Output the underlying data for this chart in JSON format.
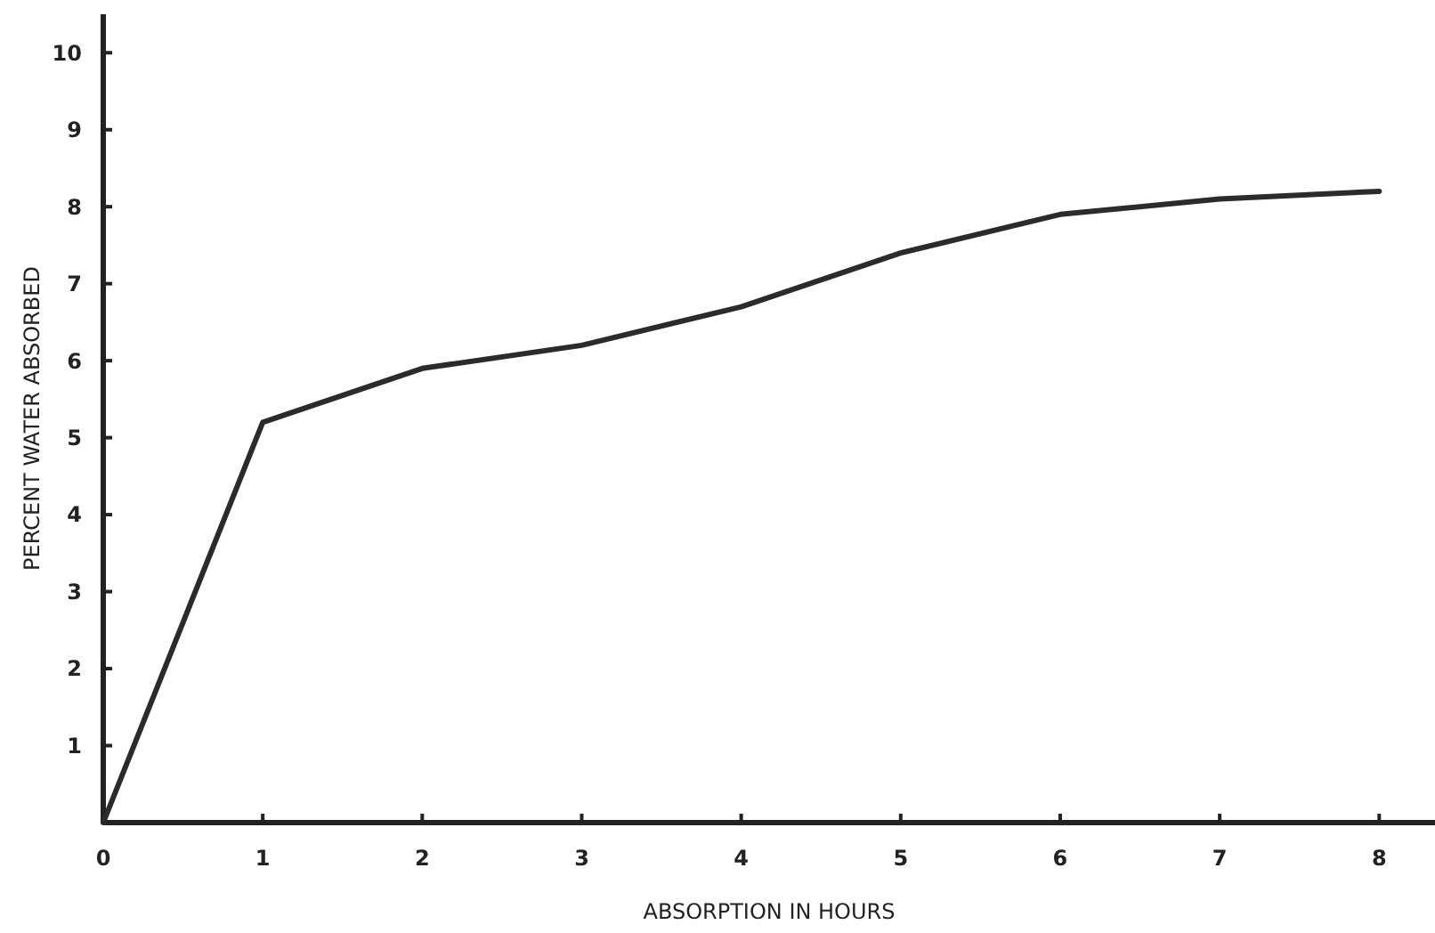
{
  "chart_data": {
    "type": "line",
    "xlabel": "ABSORPTION IN HOURS",
    "ylabel": "PERCENT WATER ABSORBED",
    "x": [
      0,
      1,
      2,
      3,
      4,
      5,
      6,
      7,
      8
    ],
    "series": [
      {
        "color": "#2b2b2b",
        "values": [
          0,
          5.2,
          5.9,
          6.2,
          6.7,
          7.4,
          7.9,
          8.1,
          8.2
        ]
      }
    ],
    "xlim": [
      0,
      8.35
    ],
    "xticks": [
      0,
      1,
      2,
      3,
      4,
      5,
      6,
      7,
      8
    ],
    "ylim": [
      0,
      10.5
    ],
    "yticks": [
      1,
      2,
      3,
      4,
      5,
      6,
      7,
      8,
      9,
      10
    ],
    "grid": false,
    "marker": "none",
    "line_style": "solid"
  }
}
